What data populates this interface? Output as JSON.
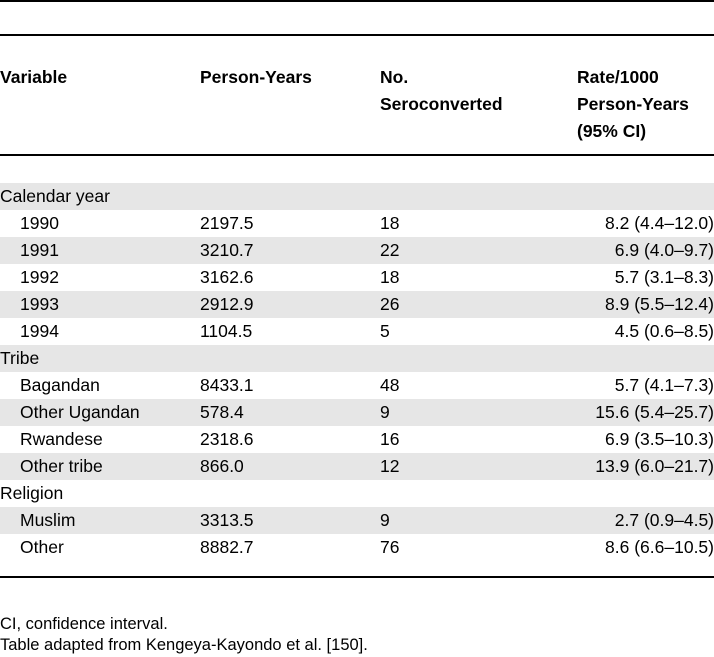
{
  "table": {
    "headers": {
      "variable": "Variable",
      "person_years": "Person-Years",
      "seroconverted_line1": "No.",
      "seroconverted_line2": "Seroconverted",
      "rate_line1": "Rate/1000",
      "rate_line2": "Person-Years",
      "rate_line3": "(95% CI)"
    },
    "rows": [
      {
        "type": "group",
        "variable": "Calendar year",
        "person_years": "",
        "seroconverted": "",
        "rate": ""
      },
      {
        "type": "sub",
        "variable": "1990",
        "person_years": "2197.5",
        "seroconverted": "18",
        "rate": "8.2 (4.4–12.0)"
      },
      {
        "type": "sub",
        "variable": "1991",
        "person_years": "3210.7",
        "seroconverted": "22",
        "rate": "6.9 (4.0–9.7)"
      },
      {
        "type": "sub",
        "variable": "1992",
        "person_years": "3162.6",
        "seroconverted": "18",
        "rate": "5.7 (3.1–8.3)"
      },
      {
        "type": "sub",
        "variable": "1993",
        "person_years": "2912.9",
        "seroconverted": "26",
        "rate": "8.9 (5.5–12.4)"
      },
      {
        "type": "sub",
        "variable": "1994",
        "person_years": "1104.5",
        "seroconverted": "5",
        "rate": "4.5 (0.6–8.5)"
      },
      {
        "type": "group",
        "variable": "Tribe",
        "person_years": "",
        "seroconverted": "",
        "rate": ""
      },
      {
        "type": "sub",
        "variable": "Bagandan",
        "person_years": "8433.1",
        "seroconverted": "48",
        "rate": "5.7 (4.1–7.3)"
      },
      {
        "type": "sub",
        "variable": "Other Ugandan",
        "person_years": "578.4",
        "seroconverted": "9",
        "rate": "15.6 (5.4–25.7)"
      },
      {
        "type": "sub",
        "variable": "Rwandese",
        "person_years": "2318.6",
        "seroconverted": "16",
        "rate": "6.9 (3.5–10.3)"
      },
      {
        "type": "sub",
        "variable": "Other tribe",
        "person_years": "866.0",
        "seroconverted": "12",
        "rate": "13.9 (6.0–21.7)"
      },
      {
        "type": "group",
        "variable": "Religion",
        "person_years": "",
        "seroconverted": "",
        "rate": ""
      },
      {
        "type": "sub",
        "variable": "Muslim",
        "person_years": "3313.5",
        "seroconverted": "9",
        "rate": "2.7 (0.9–4.5)"
      },
      {
        "type": "sub",
        "variable": "Other",
        "person_years": "8882.7",
        "seroconverted": "76",
        "rate": "8.6 (6.6–10.5)"
      }
    ]
  },
  "footnotes": {
    "abbreviation": "CI, confidence interval.",
    "source": "Table adapted from Kengeya-Kayondo et al. [150]."
  }
}
